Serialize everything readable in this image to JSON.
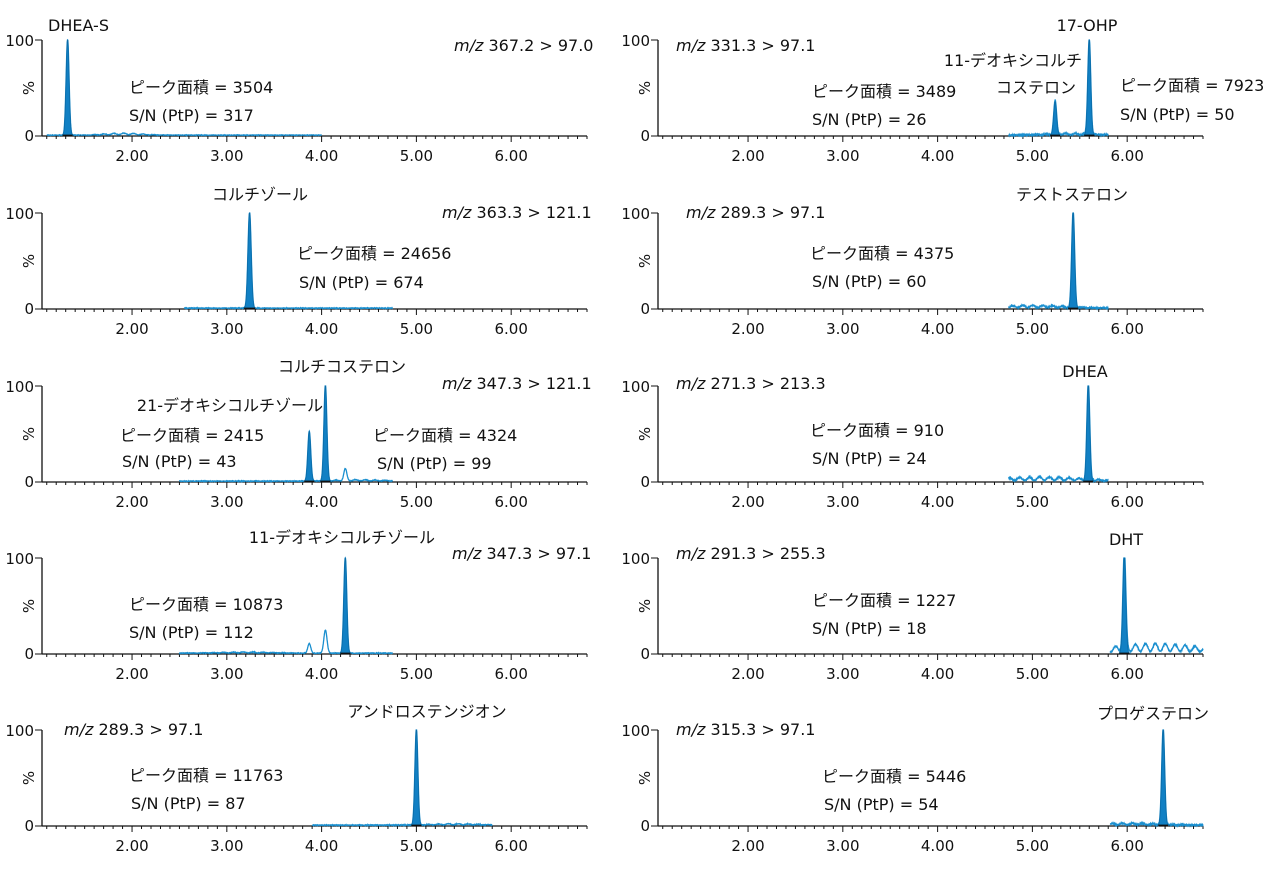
{
  "chart_data": [
    {
      "type": "line",
      "title": "DHEA-S",
      "mz_prefix": "m/z",
      "mz": "367.2 > 97.0",
      "area_label": "ピーク面積 = 3504",
      "sn_label": "S/N (PtP) = 317",
      "peaks": [
        {
          "rt": 1.32,
          "height": 100,
          "width": 0.022,
          "filled": true
        }
      ],
      "noise": [
        [
          1.9,
          2.2,
          2.2
        ]
      ],
      "trace_range": [
        1.1,
        4.0
      ],
      "y_ticks": [
        "100",
        "%",
        "0"
      ],
      "x_ticks": [
        "2.00",
        "3.00",
        "4.00",
        "5.00",
        "6.00"
      ],
      "xlim": [
        1.05,
        6.8
      ],
      "ylim": [
        0,
        100
      ]
    },
    {
      "type": "line",
      "title": "17-OHP",
      "mz_prefix": "m/z",
      "mz": "331.3 > 97.1",
      "area_label": "ピーク面積 = 3489",
      "sn_label": "S/N (PtP) = 26",
      "extra_label_1": "11-デオキシコルチ",
      "extra_label_2": "コステロン",
      "area_label_2": "ピーク面積 = 7923",
      "sn_label_2": "S/N (PtP) = 50",
      "peaks": [
        {
          "rt": 5.24,
          "height": 35,
          "width": 0.022,
          "filled": true
        },
        {
          "rt": 5.6,
          "height": 100,
          "width": 0.022,
          "filled": true
        }
      ],
      "noise": [
        [
          5.4,
          1.8,
          3
        ]
      ],
      "trace_range": [
        4.75,
        5.8
      ],
      "y_ticks": [
        "100",
        "%",
        "0"
      ],
      "x_ticks": [
        "2.00",
        "3.00",
        "4.00",
        "5.00",
        "6.00"
      ],
      "xlim": [
        1.05,
        6.8
      ],
      "ylim": [
        0,
        100
      ]
    },
    {
      "type": "line",
      "title": "コルチゾール",
      "mz_prefix": "m/z",
      "mz": "363.3 > 121.1",
      "area_label": "ピーク面積 = 24656",
      "sn_label": "S/N (PtP) = 674",
      "peaks": [
        {
          "rt": 3.24,
          "height": 100,
          "width": 0.024,
          "filled": true
        }
      ],
      "noise": [],
      "trace_range": [
        2.55,
        4.75
      ],
      "y_ticks": [
        "100",
        "%",
        "0"
      ],
      "x_ticks": [
        "2.00",
        "3.00",
        "4.00",
        "5.00",
        "6.00"
      ],
      "xlim": [
        1.05,
        6.8
      ],
      "ylim": [
        0,
        100
      ]
    },
    {
      "type": "line",
      "title": "テストステロン",
      "mz_prefix": "m/z",
      "mz": "289.3 > 97.1",
      "area_label": "ピーク面積 = 4375",
      "sn_label": "S/N (PtP) = 60",
      "peaks": [
        {
          "rt": 5.43,
          "height": 100,
          "width": 0.022,
          "filled": true
        }
      ],
      "noise": [
        [
          5.0,
          3.0,
          4
        ]
      ],
      "trace_range": [
        4.75,
        5.8
      ],
      "y_ticks": [
        "100",
        "%",
        "0"
      ],
      "x_ticks": [
        "2.00",
        "3.00",
        "4.00",
        "5.00",
        "6.00"
      ],
      "xlim": [
        1.05,
        6.8
      ],
      "ylim": [
        0,
        100
      ]
    },
    {
      "type": "line",
      "title": "コルチコステロン",
      "mz_prefix": "m/z",
      "mz": "347.3 > 121.1",
      "area_label": "ピーク面積 = 2415",
      "sn_label": "S/N (PtP) = 43",
      "extra_label_1": "21-デオキシコルチゾール",
      "area_label_2": "ピーク面積 = 4324",
      "sn_label_2": "S/N (PtP) = 99",
      "peaks": [
        {
          "rt": 3.87,
          "height": 52,
          "width": 0.022,
          "filled": true
        },
        {
          "rt": 4.04,
          "height": 100,
          "width": 0.022,
          "filled": true
        },
        {
          "rt": 4.25,
          "height": 12,
          "width": 0.022,
          "filled": false
        }
      ],
      "noise": [
        [
          4.4,
          1.5,
          3
        ]
      ],
      "trace_range": [
        2.5,
        4.75
      ],
      "y_ticks": [
        "100",
        "%",
        "0"
      ],
      "x_ticks": [
        "2.00",
        "3.00",
        "4.00",
        "5.00",
        "6.00"
      ],
      "xlim": [
        1.05,
        6.8
      ],
      "ylim": [
        0,
        100
      ]
    },
    {
      "type": "line",
      "title": "DHEA",
      "mz_prefix": "m/z",
      "mz": "271.3 > 213.3",
      "area_label": "ピーク面積 = 910",
      "sn_label": "S/N (PtP) = 24",
      "peaks": [
        {
          "rt": 5.59,
          "height": 100,
          "width": 0.022,
          "filled": true
        }
      ],
      "noise": [
        [
          5.1,
          4.5,
          5
        ]
      ],
      "trace_range": [
        4.75,
        5.8
      ],
      "y_ticks": [
        "100",
        "%",
        "0"
      ],
      "x_ticks": [
        "2.00",
        "3.00",
        "4.00",
        "5.00",
        "6.00"
      ],
      "xlim": [
        1.05,
        6.8
      ],
      "ylim": [
        0,
        100
      ]
    },
    {
      "type": "line",
      "title": "11-デオキシコルチゾール",
      "mz_prefix": "m/z",
      "mz": "347.3 > 97.1",
      "area_label": "ピーク面積 = 10873",
      "sn_label": "S/N (PtP) = 112",
      "peaks": [
        {
          "rt": 3.87,
          "height": 10,
          "width": 0.022,
          "filled": false
        },
        {
          "rt": 4.04,
          "height": 24,
          "width": 0.024,
          "filled": false
        },
        {
          "rt": 4.25,
          "height": 100,
          "width": 0.022,
          "filled": true
        }
      ],
      "noise": [
        [
          3.2,
          1.2,
          3
        ]
      ],
      "trace_range": [
        2.5,
        4.75
      ],
      "y_ticks": [
        "100",
        "%",
        "0"
      ],
      "x_ticks": [
        "2.00",
        "3.00",
        "4.00",
        "5.00",
        "6.00"
      ],
      "xlim": [
        1.05,
        6.8
      ],
      "ylim": [
        0,
        100
      ]
    },
    {
      "type": "line",
      "title": "DHT",
      "mz_prefix": "m/z",
      "mz": "291.3 > 255.3",
      "area_label": "ピーク面積 = 1227",
      "sn_label": "S/N (PtP) = 18",
      "peaks": [
        {
          "rt": 5.97,
          "height": 100,
          "width": 0.022,
          "filled": true
        }
      ],
      "noise": [
        [
          6.3,
          10,
          6
        ]
      ],
      "trace_range": [
        5.82,
        6.8
      ],
      "y_ticks": [
        "100",
        "%",
        "0"
      ],
      "x_ticks": [
        "2.00",
        "3.00",
        "4.00",
        "5.00",
        "6.00"
      ],
      "xlim": [
        1.05,
        6.8
      ],
      "ylim": [
        0,
        100
      ]
    },
    {
      "type": "line",
      "title": "アンドロステンジオン",
      "mz_prefix": "m/z",
      "mz": "289.3 > 97.1",
      "area_label": "ピーク面積 = 11763",
      "sn_label": "S/N (PtP) = 87",
      "peaks": [
        {
          "rt": 5.0,
          "height": 100,
          "width": 0.022,
          "filled": true
        }
      ],
      "noise": [
        [
          5.4,
          1.5,
          3
        ]
      ],
      "trace_range": [
        3.9,
        5.8
      ],
      "y_ticks": [
        "100",
        "%",
        "0"
      ],
      "x_ticks": [
        "2.00",
        "3.00",
        "4.00",
        "5.00",
        "6.00"
      ],
      "xlim": [
        1.05,
        6.8
      ],
      "ylim": [
        0,
        100
      ]
    },
    {
      "type": "line",
      "title": "プロゲステロン",
      "mz_prefix": "m/z",
      "mz": "315.3 > 97.1",
      "area_label": "ピーク面積 = 5446",
      "sn_label": "S/N (PtP) = 54",
      "peaks": [
        {
          "rt": 6.38,
          "height": 100,
          "width": 0.022,
          "filled": true
        }
      ],
      "noise": [
        [
          6.0,
          2.0,
          4
        ]
      ],
      "trace_range": [
        5.82,
        6.8
      ],
      "y_ticks": [
        "100",
        "%",
        "0"
      ],
      "x_ticks": [
        "2.00",
        "3.00",
        "4.00",
        "5.00",
        "6.00"
      ],
      "xlim": [
        1.05,
        6.8
      ],
      "ylim": [
        0,
        100
      ]
    }
  ],
  "colors": {
    "peak_fill": "#1180c4",
    "trace": "#1a8fcf",
    "axis": "#111111"
  }
}
